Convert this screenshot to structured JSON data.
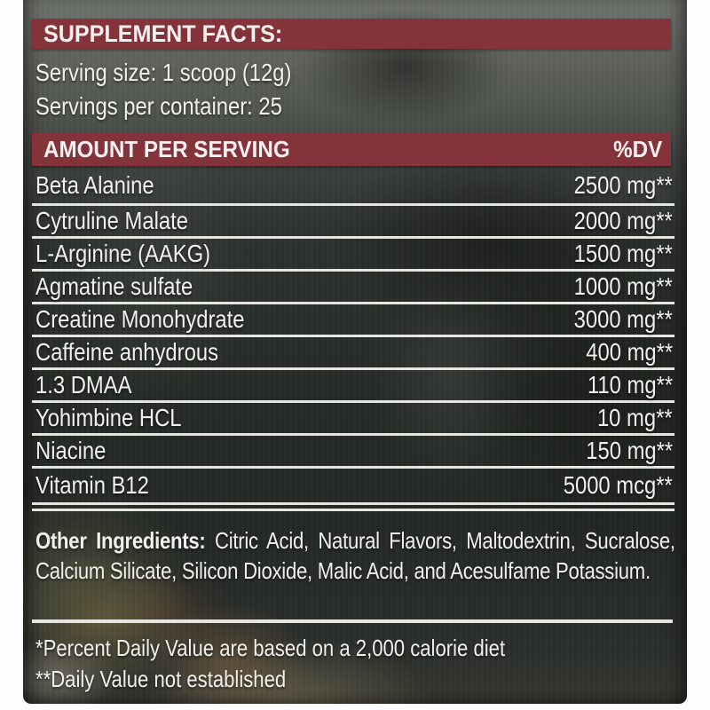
{
  "header": {
    "title": "SUPPLEMENT FACTS:"
  },
  "serving": {
    "size": "Serving size: 1 scoop (12g)",
    "per_container": "Servings per container: 25"
  },
  "table": {
    "header_left": "AMOUNT PER SERVING",
    "header_right": "%DV",
    "rows": [
      {
        "name": "Beta Alanine",
        "amount": "2500 mg**"
      },
      {
        "name": "Cytruline Malate",
        "amount": "2000 mg**"
      },
      {
        "name": "L-Arginine (AAKG)",
        "amount": "1500 mg**"
      },
      {
        "name": "Agmatine sulfate",
        "amount": "1000 mg**"
      },
      {
        "name": "Creatine Monohydrate",
        "amount": "3000 mg**"
      },
      {
        "name": "Caffeine anhydrous",
        "amount": "400 mg**"
      },
      {
        "name": "1.3 DMAA",
        "amount": "110 mg**"
      },
      {
        "name": "Yohimbine HCL",
        "amount": "10 mg**"
      },
      {
        "name": "Niacine",
        "amount": "150 mg**"
      },
      {
        "name": "Vitamin B12",
        "amount": "5000 mcg**"
      }
    ]
  },
  "other_ingredients": {
    "label": "Other Ingredients:",
    "text": "Citric Acid, Natural Flavors, Maltodextrin, Sucralose, Calcium Silicate, Silicon Dioxide, Malic Acid, and Acesulfame Potassium."
  },
  "footnotes": [
    "*Percent Daily Value are based on a 2,000 calorie diet",
    "**Daily Value not established"
  ],
  "colors": {
    "accent_red": "#84333a",
    "label_text": "#f1f0ec",
    "separator_line": "#e6e5e0",
    "label_background": "#2a2d2b"
  }
}
